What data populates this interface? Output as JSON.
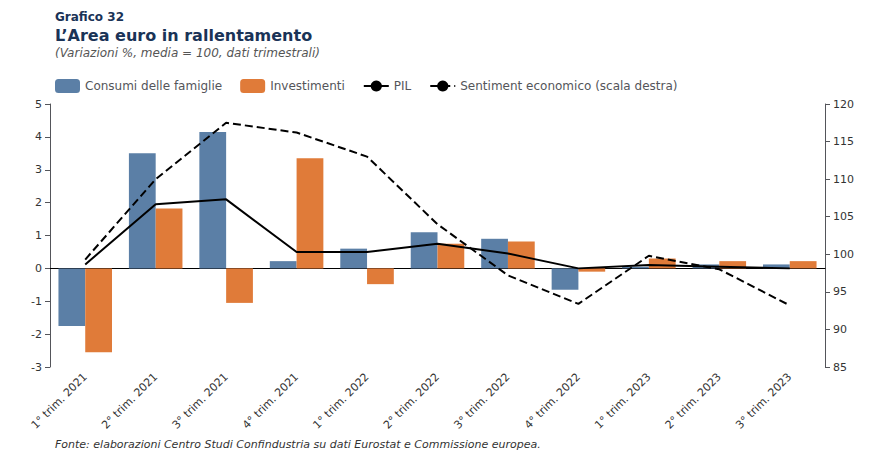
{
  "chart_data": {
    "type": "bar",
    "title": "L’Area euro in rallentamento",
    "subtitle": "(Variazioni %, media = 100, dati trimestrali)",
    "annotations": [
      "Grafico 32",
      "Fonte: elaborazioni Centro Studi Confindustria su dati Eurostat e Commissione europea."
    ],
    "categories": [
      "1° trim. 2021",
      "2° trim. 2021",
      "3° trim. 2021",
      "4° trim. 2021",
      "1° trim. 2022",
      "2° trim. 2022",
      "3° trim. 2022",
      "4° trim. 2022",
      "1° trim. 2023",
      "2° trim. 2023",
      "3° trim. 2023"
    ],
    "series": [
      {
        "name": "Consumi delle famiglie",
        "type": "bar",
        "color": "#5b7fa6",
        "values": [
          -1.75,
          3.5,
          4.15,
          0.22,
          0.6,
          1.1,
          0.9,
          -0.65,
          0.05,
          0.12,
          0.12
        ]
      },
      {
        "name": "Investimenti",
        "type": "bar",
        "color": "#e07b39",
        "values": [
          -2.55,
          1.82,
          -1.05,
          3.35,
          -0.48,
          0.75,
          0.82,
          -0.1,
          0.3,
          0.22,
          0.22
        ]
      },
      {
        "name": "PIL",
        "type": "line",
        "color": "#000000",
        "line_style": "solid",
        "values": [
          0.12,
          1.95,
          2.1,
          0.5,
          0.5,
          0.75,
          0.45,
          0.0,
          0.1,
          0.05,
          0.0
        ]
      },
      {
        "name": "Sentiment economico (scala destra)",
        "type": "line",
        "color": "#000000",
        "line_style": "dashed",
        "axis": "y2",
        "values": [
          99.3,
          110.0,
          117.5,
          116.2,
          113.0,
          104.0,
          97.2,
          93.4,
          99.8,
          98.0,
          93.2
        ]
      }
    ],
    "ylim": [
      -3,
      5
    ],
    "yticks": [
      -3,
      -2,
      -1,
      0,
      1,
      2,
      3,
      4,
      5
    ],
    "y2lim": [
      85,
      120
    ],
    "y2ticks": [
      85,
      90,
      95,
      100,
      105,
      110,
      115,
      120
    ],
    "grid": false,
    "legend": "upper left"
  }
}
